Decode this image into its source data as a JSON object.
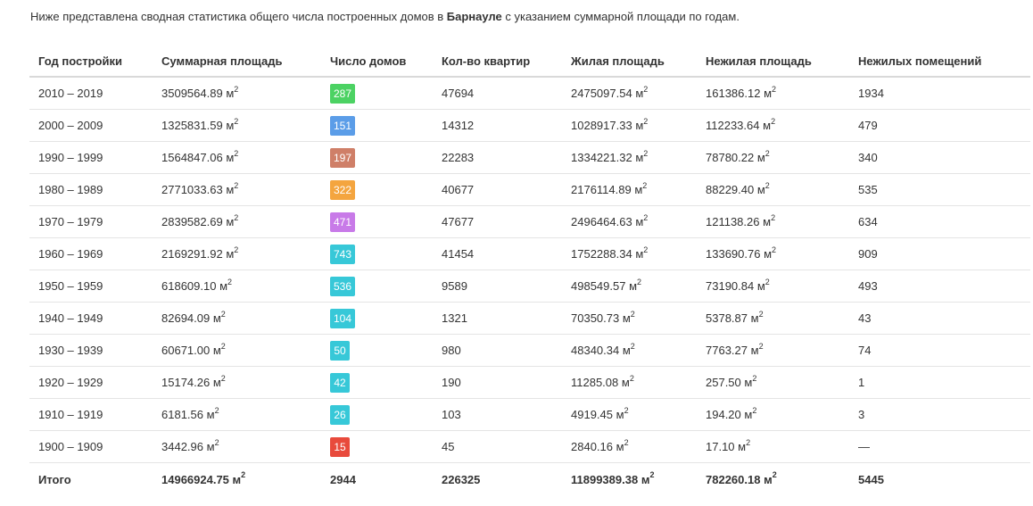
{
  "intro": {
    "before": "Ниже представлена сводная статистика общего числа построенных домов в ",
    "city": "Барнауле",
    "after": " с указанием суммарной площади по годам."
  },
  "unit": "м",
  "unit_sup": "2",
  "headers": [
    "Год постройки",
    "Суммарная площадь",
    "Число домов",
    "Кол-во квартир",
    "Жилая площадь",
    "Нежилая площадь",
    "Нежилых помещений"
  ],
  "rows": [
    {
      "years": "2010 – 2019",
      "total_area": "3509564.89",
      "houses": "287",
      "badge_color": "#4cd263",
      "apartments": "47694",
      "living_area": "2475097.54",
      "nonliving_area": "161386.12",
      "nonliving_rooms": "1934"
    },
    {
      "years": "2000 – 2009",
      "total_area": "1325831.59",
      "houses": "151",
      "badge_color": "#5b9de8",
      "apartments": "14312",
      "living_area": "1028917.33",
      "nonliving_area": "112233.64",
      "nonliving_rooms": "479"
    },
    {
      "years": "1990 – 1999",
      "total_area": "1564847.06",
      "houses": "197",
      "badge_color": "#cf7f68",
      "apartments": "22283",
      "living_area": "1334221.32",
      "nonliving_area": "78780.22",
      "nonliving_rooms": "340"
    },
    {
      "years": "1980 – 1989",
      "total_area": "2771033.63",
      "houses": "322",
      "badge_color": "#f4a53f",
      "apartments": "40677",
      "living_area": "2176114.89",
      "nonliving_area": "88229.40",
      "nonliving_rooms": "535"
    },
    {
      "years": "1970 – 1979",
      "total_area": "2839582.69",
      "houses": "471",
      "badge_color": "#c87ae8",
      "apartments": "47677",
      "living_area": "2496464.63",
      "nonliving_area": "121138.26",
      "nonliving_rooms": "634"
    },
    {
      "years": "1960 – 1969",
      "total_area": "2169291.92",
      "houses": "743",
      "badge_color": "#37c8d8",
      "apartments": "41454",
      "living_area": "1752288.34",
      "nonliving_area": "133690.76",
      "nonliving_rooms": "909"
    },
    {
      "years": "1950 – 1959",
      "total_area": "618609.10",
      "houses": "536",
      "badge_color": "#37c8d8",
      "apartments": "9589",
      "living_area": "498549.57",
      "nonliving_area": "73190.84",
      "nonliving_rooms": "493"
    },
    {
      "years": "1940 – 1949",
      "total_area": "82694.09",
      "houses": "104",
      "badge_color": "#37c8d8",
      "apartments": "1321",
      "living_area": "70350.73",
      "nonliving_area": "5378.87",
      "nonliving_rooms": "43"
    },
    {
      "years": "1930 – 1939",
      "total_area": "60671.00",
      "houses": "50",
      "badge_color": "#37c8d8",
      "apartments": "980",
      "living_area": "48340.34",
      "nonliving_area": "7763.27",
      "nonliving_rooms": "74"
    },
    {
      "years": "1920 – 1929",
      "total_area": "15174.26",
      "houses": "42",
      "badge_color": "#37c8d8",
      "apartments": "190",
      "living_area": "11285.08",
      "nonliving_area": "257.50",
      "nonliving_rooms": "1"
    },
    {
      "years": "1910 – 1919",
      "total_area": "6181.56",
      "houses": "26",
      "badge_color": "#37c8d8",
      "apartments": "103",
      "living_area": "4919.45",
      "nonliving_area": "194.20",
      "nonliving_rooms": "3"
    },
    {
      "years": "1900 – 1909",
      "total_area": "3442.96",
      "houses": "15",
      "badge_color": "#e84a3c",
      "apartments": "45",
      "living_area": "2840.16",
      "nonliving_area": "17.10",
      "nonliving_rooms": "—"
    }
  ],
  "total": {
    "label": "Итого",
    "total_area": "14966924.75",
    "houses": "2944",
    "apartments": "226325",
    "living_area": "11899389.38",
    "nonliving_area": "782260.18",
    "nonliving_rooms": "5445"
  }
}
